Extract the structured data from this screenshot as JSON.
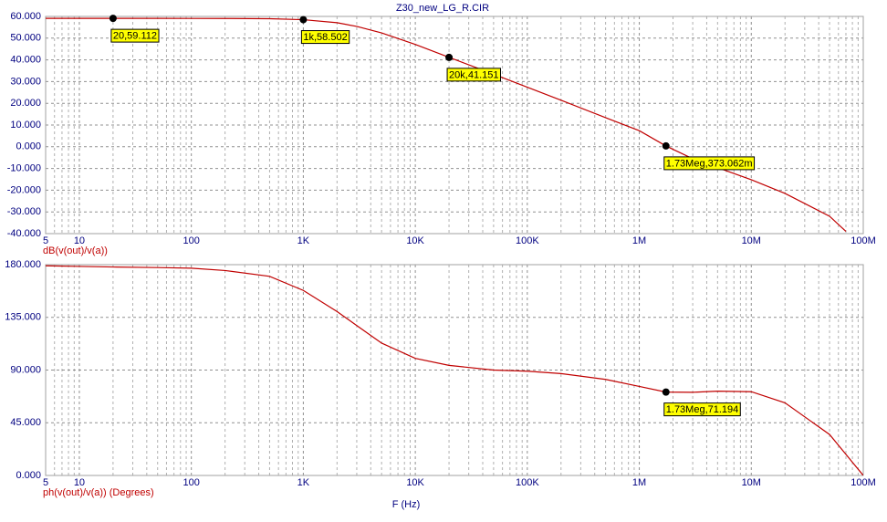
{
  "chart_data": [
    {
      "type": "line",
      "title": "Z30_new_LG_R.CIR",
      "log_x": true,
      "grid": true,
      "minor_grid": true,
      "x": [
        5,
        10,
        20,
        50,
        100,
        200,
        500,
        1000,
        2000,
        3000,
        5000,
        10000,
        20000,
        50000,
        100000,
        200000,
        500000,
        1000000,
        1730000,
        3000000,
        5000000,
        10000000,
        20000000,
        50000000,
        70000000
      ],
      "series": [
        {
          "name": "dB(v(out)/v(a))",
          "color": "#c00000",
          "values": [
            59.11,
            59.11,
            59.112,
            59.1,
            59.09,
            59.06,
            58.95,
            58.502,
            57.1,
            55.4,
            52.4,
            47.1,
            41.151,
            33.4,
            27.4,
            21.4,
            13.4,
            7.4,
            0.373062,
            -5.5,
            -9.6,
            -15.2,
            -21.5,
            -32,
            -39
          ]
        }
      ],
      "xlim": [
        5,
        100000000
      ],
      "xticks": [
        5,
        10,
        100,
        {
          "value": 1000,
          "label": "1K"
        },
        {
          "value": 10000,
          "label": "10K"
        },
        {
          "value": 100000,
          "label": "100K"
        },
        {
          "value": 1000000,
          "label": "1M"
        },
        {
          "value": 10000000,
          "label": "10M"
        },
        {
          "value": 100000000,
          "label": "100M"
        }
      ],
      "ylim": [
        -40,
        60
      ],
      "yticks": [
        {
          "value": -40,
          "label": "-40.000"
        },
        {
          "value": -30,
          "label": "-30.000"
        },
        {
          "value": -20,
          "label": "-20.000"
        },
        {
          "value": -10,
          "label": "-10.000"
        },
        {
          "value": 0,
          "label": "0.000"
        },
        {
          "value": 10,
          "label": "10.000"
        },
        {
          "value": 20,
          "label": "20.000"
        },
        {
          "value": 30,
          "label": "30.000"
        },
        {
          "value": 40,
          "label": "40.000"
        },
        {
          "value": 50,
          "label": "50.000"
        },
        {
          "value": 60,
          "label": "60.000"
        }
      ],
      "markers": [
        {
          "x": 20,
          "y": 59.112,
          "label": "20,59.112"
        },
        {
          "x": 1000,
          "y": 58.502,
          "label": "1k,58.502"
        },
        {
          "x": 20000,
          "y": 41.151,
          "label": "20k,41.151"
        },
        {
          "x": 1730000,
          "y": 0.373062,
          "label": "1.73Meg,373.062m"
        }
      ]
    },
    {
      "type": "line",
      "x_label": "F (Hz)",
      "log_x": true,
      "grid": true,
      "minor_grid": true,
      "x": [
        5,
        10,
        20,
        50,
        100,
        200,
        500,
        1000,
        2000,
        3000,
        5000,
        10000,
        20000,
        50000,
        100000,
        200000,
        500000,
        1000000,
        1730000,
        3000000,
        5000000,
        10000000,
        20000000,
        50000000,
        70000000,
        100000000
      ],
      "series": [
        {
          "name": "ph(v(out)/v(a)) (Degrees)",
          "color": "#c00000",
          "values": [
            179,
            178.5,
            178,
            177.5,
            177,
            175,
            170,
            158,
            140,
            128,
            113,
            100,
            94,
            90,
            89,
            87,
            82,
            76,
            71.194,
            71,
            72,
            71.5,
            62,
            35,
            18,
            0
          ]
        }
      ],
      "xlim": [
        5,
        100000000
      ],
      "xticks": [
        5,
        10,
        100,
        {
          "value": 1000,
          "label": "1K"
        },
        {
          "value": 10000,
          "label": "10K"
        },
        {
          "value": 100000,
          "label": "100K"
        },
        {
          "value": 1000000,
          "label": "1M"
        },
        {
          "value": 10000000,
          "label": "10M"
        },
        {
          "value": 100000000,
          "label": "100M"
        }
      ],
      "ylim": [
        0,
        180
      ],
      "yticks": [
        {
          "value": 0,
          "label": "0.000"
        },
        {
          "value": 45,
          "label": "45.000"
        },
        {
          "value": 90,
          "label": "90.000"
        },
        {
          "value": 135,
          "label": "135.000"
        },
        {
          "value": 180,
          "label": "180.000"
        }
      ],
      "markers": [
        {
          "x": 1730000,
          "y": 71.194,
          "label": "1.73Meg,71.194"
        }
      ]
    }
  ]
}
